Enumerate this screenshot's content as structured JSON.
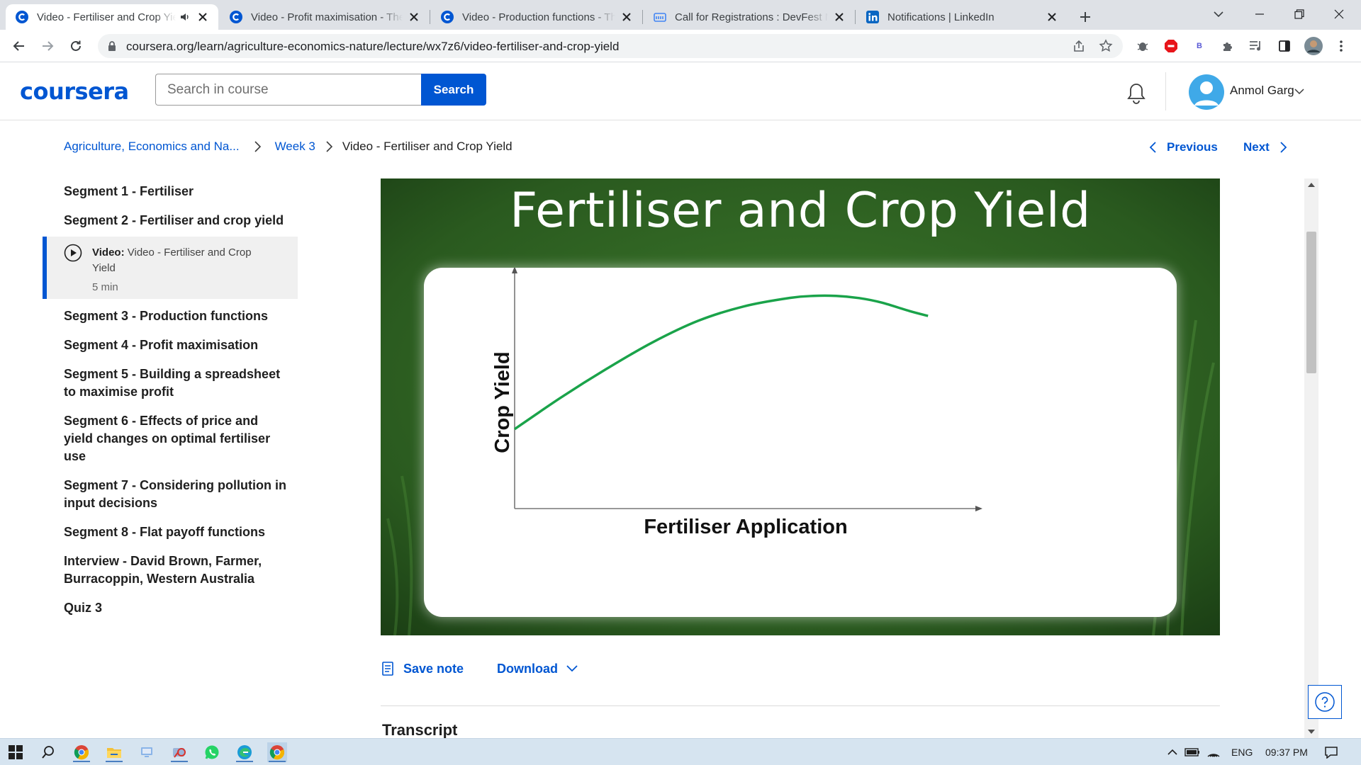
{
  "browser": {
    "tabs": [
      {
        "title": "Video - Fertiliser and Crop Yield",
        "favicon": "coursera-favicon",
        "active": true,
        "audio": true
      },
      {
        "title": "Video - Profit maximisation - The",
        "favicon": "coursera-favicon",
        "active": false
      },
      {
        "title": "Video - Production functions - Th",
        "favicon": "coursera-favicon",
        "active": false
      },
      {
        "title": "Call for Registrations : DevFest N",
        "favicon": "meetup-favicon",
        "active": false
      },
      {
        "title": "Notifications | LinkedIn",
        "favicon": "linkedin-favicon",
        "active": false
      }
    ],
    "url": "coursera.org/learn/agriculture-economics-nature/lecture/wx7z6/video-fertiliser-and-crop-yield",
    "ext_badge": "B"
  },
  "header": {
    "logo": "coursera",
    "search_placeholder": "Search in course",
    "search_button": "Search",
    "user_name": "Anmol Garg"
  },
  "breadcrumb": {
    "course": "Agriculture, Economics and Na...",
    "week": "Week 3",
    "current": "Video - Fertiliser and Crop Yield"
  },
  "nav": {
    "previous": "Previous",
    "next": "Next"
  },
  "sidebar": {
    "items_before": [
      {
        "label": "Segment 1 - Fertiliser"
      },
      {
        "label": "Segment 2 - Fertiliser and crop yield"
      }
    ],
    "active": {
      "type_label": "Video:",
      "title": "Video - Fertiliser and Crop Yield",
      "duration": "5 min"
    },
    "items_after": [
      {
        "label": "Segment 3 - Production functions"
      },
      {
        "label": "Segment 4 - Profit maximisation"
      },
      {
        "label": "Segment 5 - Building a spreadsheet to maximise profit"
      },
      {
        "label": "Segment 6 - Effects of price and yield changes on optimal fertiliser use"
      },
      {
        "label": "Segment 7 - Considering pollution in input decisions"
      },
      {
        "label": "Segment 8 - Flat payoff functions"
      },
      {
        "label": "Interview - David Brown, Farmer, Burracoppin, Western Australia"
      },
      {
        "label": "Quiz 3"
      }
    ]
  },
  "video": {
    "slide_title": "Fertiliser and Crop Yield",
    "background_color": "#2d5a22",
    "curve_color": "#1aa34a"
  },
  "chart_data": {
    "type": "line",
    "title": "Fertiliser and Crop Yield",
    "xlabel": "Fertiliser Application",
    "ylabel": "Crop Yield",
    "x_tick_labels": [],
    "y_tick_labels": [],
    "xlim": [
      0,
      1
    ],
    "ylim": [
      0,
      1
    ],
    "grid": false,
    "series": [
      {
        "x": [
          0.0,
          0.1,
          0.2,
          0.3,
          0.4,
          0.5,
          0.6,
          0.65,
          0.7,
          0.75,
          0.8,
          0.86,
          0.9
        ],
        "y": [
          0.33,
          0.46,
          0.58,
          0.69,
          0.78,
          0.84,
          0.875,
          0.883,
          0.883,
          0.874,
          0.855,
          0.82,
          0.8
        ]
      }
    ]
  },
  "actions": {
    "save_note": "Save note",
    "download": "Download"
  },
  "transcript_heading": "Transcript",
  "taskbar": {
    "language": "ENG",
    "time": "09:37 PM"
  }
}
